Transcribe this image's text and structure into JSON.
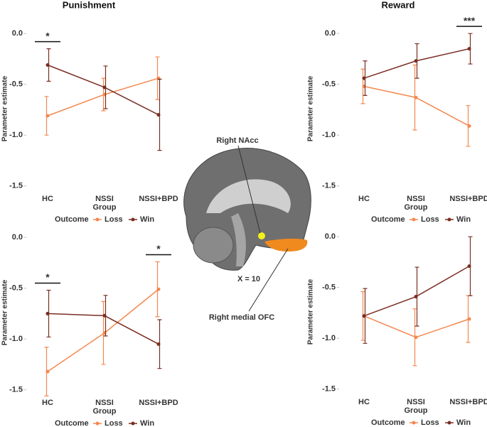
{
  "column_titles": [
    "Punishment",
    "Reward"
  ],
  "brain_labels": {
    "nacc": "Right NAcc",
    "slice": "X = 10",
    "ofc": "Right medial OFC"
  },
  "chart_data": [
    {
      "type": "line",
      "ylabel": "Parameter estimate",
      "xlabel": "Group",
      "legend_title": "Outcome",
      "legend": "bottom",
      "grid": false,
      "categories": [
        "HC",
        "NSSI",
        "NSSI+BPD"
      ],
      "ylim": [
        -1.6,
        0.12
      ],
      "yticks": [
        {
          "value": 0,
          "label": "0.0"
        },
        -0.5,
        {
          "value": -1,
          "label": "-1.0"
        },
        -1.5
      ],
      "series": [
        {
          "name": "Loss",
          "color": "#f4884f",
          "values": [
            -0.81,
            -0.6,
            -0.44
          ],
          "errors": [
            0.19,
            0.16,
            0.21
          ]
        },
        {
          "name": "Win",
          "color": "#7a2e22",
          "values": [
            -0.31,
            -0.53,
            -0.8
          ],
          "errors": [
            0.16,
            0.21,
            0.35
          ]
        }
      ],
      "annotations": [
        {
          "text": "*",
          "at": "HC"
        }
      ]
    },
    {
      "type": "line",
      "ylabel": "Parameter estimate",
      "xlabel": "Group",
      "legend_title": "Outcome",
      "legend": "bottom",
      "grid": false,
      "categories": [
        "HC",
        "NSSI",
        "NSSI+BPD"
      ],
      "ylim": [
        -1.6,
        0.12
      ],
      "yticks": [
        {
          "value": 0,
          "label": "0.0"
        },
        -0.5,
        {
          "value": -1,
          "label": "-1.0"
        },
        -1.5
      ],
      "series": [
        {
          "name": "Loss",
          "color": "#f4884f",
          "values": [
            -0.52,
            -0.63,
            -0.91
          ],
          "errors": [
            0.17,
            0.32,
            0.2
          ]
        },
        {
          "name": "Win",
          "color": "#7a2e22",
          "values": [
            -0.44,
            -0.27,
            -0.15
          ],
          "errors": [
            0.17,
            0.17,
            0.15
          ]
        }
      ],
      "annotations": [
        {
          "text": "***",
          "at": "NSSI+BPD"
        }
      ]
    },
    {
      "type": "line",
      "ylabel": "Parameter estimate",
      "xlabel": "Group",
      "legend_title": "Outcome",
      "legend": "bottom",
      "grid": false,
      "categories": [
        "HC",
        "NSSI",
        "NSSI+BPD"
      ],
      "ylim": [
        -1.6,
        0.12
      ],
      "yticks": [
        {
          "value": 0,
          "label": "0.0"
        },
        -0.5,
        {
          "value": -1,
          "label": "-1.0"
        },
        -1.5
      ],
      "series": [
        {
          "name": "Loss",
          "color": "#f4884f",
          "values": [
            -1.32,
            -0.94,
            -0.51
          ],
          "errors": [
            0.24,
            0.31,
            0.27
          ]
        },
        {
          "name": "Win",
          "color": "#7a2e22",
          "values": [
            -0.75,
            -0.77,
            -1.05
          ],
          "errors": [
            0.23,
            0.2,
            0.24
          ]
        }
      ],
      "annotations": [
        {
          "text": "*",
          "at": "HC"
        },
        {
          "text": "*",
          "at": "NSSI+BPD"
        }
      ]
    },
    {
      "type": "line",
      "ylabel": "Parameter estimate",
      "xlabel": "Group",
      "legend_title": "Outcome",
      "legend": "bottom",
      "grid": false,
      "categories": [
        "HC",
        "NSSI",
        "NSSI+BPD"
      ],
      "ylim": [
        -1.6,
        0.12
      ],
      "yticks": [
        {
          "value": 0,
          "label": "0.0"
        },
        -0.5,
        {
          "value": -1,
          "label": "-1.0"
        },
        -1.5
      ],
      "series": [
        {
          "name": "Loss",
          "color": "#f4884f",
          "values": [
            -0.78,
            -0.99,
            -0.81
          ],
          "errors": [
            0.24,
            0.28,
            0.23
          ]
        },
        {
          "name": "Win",
          "color": "#7a2e22",
          "values": [
            -0.78,
            -0.59,
            -0.29
          ],
          "errors": [
            0.27,
            0.29,
            0.29
          ]
        }
      ],
      "annotations": []
    }
  ]
}
